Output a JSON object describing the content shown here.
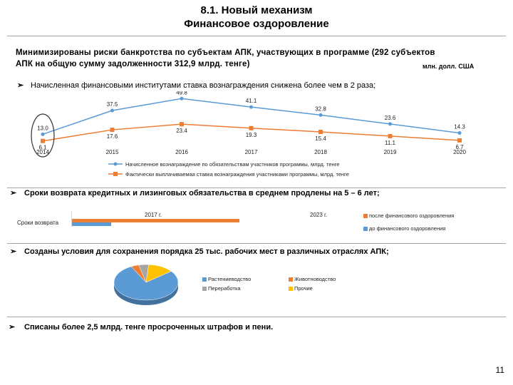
{
  "header": {
    "title_line1": "8.1. Новый механизм",
    "title_line2": "Финансовое оздоровление"
  },
  "intro": {
    "text": "Минимизированы риски банкротства по субъектам АПК, участвующих в программе (292 субъектов АПК на общую сумму задолженности 312,9 млрд. тенге)",
    "unit": "млн. долл. США"
  },
  "bullets": {
    "b1": "Начисленная финансовыми институтами ставка вознаграждения снижена более чем в 2 раза;",
    "b2": "Сроки возврата кредитных и лизинговых обязательства в среднем продлены на 5 – 6 лет;",
    "b3": "Созданы условия для сохранения порядка 25 тыс. рабочих мест в различных отраслях АПК;",
    "b4": "Списаны более 2,5 млрд. тенге просроченных штрафов и пени."
  },
  "chart_data": [
    {
      "type": "line",
      "categories": [
        "2014",
        "2015",
        "2016",
        "2017",
        "2018",
        "2019",
        "2020"
      ],
      "series": [
        {
          "name": "Начисленное вознаграждение по обязательствам участников программы, млрд. тенге",
          "values": [
            13.0,
            37.5,
            49.8,
            41.1,
            32.8,
            23.6,
            14.3
          ],
          "labels": [
            "13.0",
            "37.5",
            "49.8",
            "41.1",
            "32.8",
            "23.6",
            "14.3"
          ],
          "color": "#5b9bd5"
        },
        {
          "name": "Фактически выплачиваемая ставка вознаграждения участниками программы, млрд. тенге",
          "values": [
            6.1,
            17.6,
            23.4,
            19.3,
            15.4,
            11.1,
            6.7
          ],
          "labels": [
            "6.1",
            "17.6",
            "23.4",
            "19.3",
            "15.4",
            "11.1",
            "6.7"
          ],
          "color": "#ed7d31"
        }
      ],
      "title": "",
      "xlabel": "",
      "ylabel": ""
    },
    {
      "type": "bar",
      "orientation": "horizontal",
      "categories": [
        "Сроки возврата"
      ],
      "series": [
        {
          "name": "после финансового оздоровления",
          "values": [
            2023
          ],
          "label": "2023 г.",
          "color": "#ed7d31"
        },
        {
          "name": "до финансового оздоровления",
          "values": [
            2017
          ],
          "label": "2017 г.",
          "color": "#5b9bd5"
        }
      ]
    },
    {
      "type": "pie",
      "labels": [
        "Растениеводство",
        "Животноводство",
        "Переработка",
        "Прочие"
      ],
      "values": [
        78,
        4,
        5,
        13
      ],
      "colors": [
        "#5b9bd5",
        "#ed7d31",
        "#a5a5a5",
        "#ffc000"
      ]
    }
  ],
  "page_number": "11"
}
